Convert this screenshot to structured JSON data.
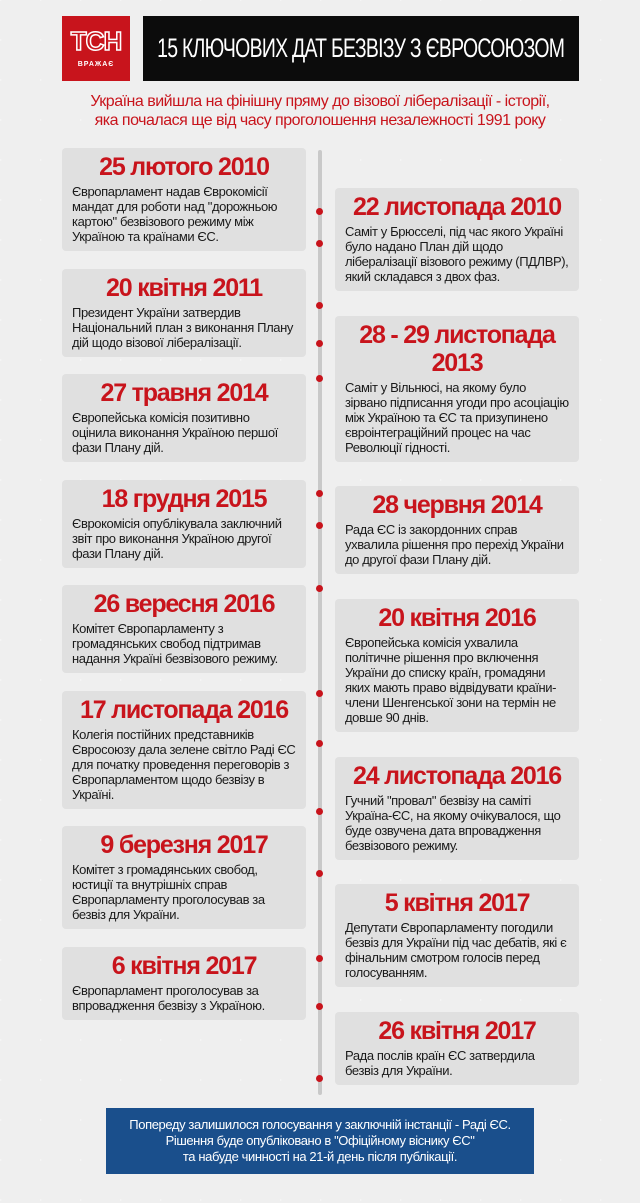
{
  "logo": {
    "text": "ТСН",
    "sub": "ВРАЖАЄ"
  },
  "header": {
    "title": "15 КЛЮЧОВИХ ДАТ БЕЗВІЗУ З ЄВРОСОЮЗОМ",
    "subtitle_1": "Україна вийшла на фінішну пряму до візової лібералізації - історії,",
    "subtitle_2": "яка почалася ще від часу проголошення незалежності 1991 року"
  },
  "colors": {
    "accent": "#c8141c",
    "banner": "#0c0c0c",
    "footer": "#1a4f8c"
  },
  "left": [
    {
      "date": "25 лютого 2010",
      "year": "2010",
      "text": "Європарламент надав Єврокомісії мандат для роботи над \"дорожньою картою\" безвізового режиму між Україною та країнами ЄС."
    },
    {
      "date": "20 квітня 2011",
      "year": "2011",
      "text": "Президент України затвердив Національний план з виконання Плану дій щодо візової лібералізації."
    },
    {
      "date": "27 травня 2014",
      "year": "2014",
      "text": "Європейська комісія позитивно оцінила виконання Україною першої фази Плану дій."
    },
    {
      "date": "18 грудня 2015",
      "year": "2015",
      "text": "Єврокомісія опублікувала заключний звіт про виконання Україною другої фази Плану дій."
    },
    {
      "date": "26 вересня 2016",
      "year": "2016",
      "text": "Комітет Європарламенту з громадянських свобод підтримав надання Україні безвізового режиму."
    },
    {
      "date": "17 листопада 2016",
      "year": "2016",
      "text": "Колегія постійних представників Євросоюзу дала зелене світло Раді ЄС для початку проведення переговорів з Європарламентом щодо безвізу в Україні."
    },
    {
      "date": "9 березня 2017",
      "year": "2017",
      "text": "Комітет з громадянських свобод, юстиції та внутрішніх справ Європарламенту проголосував за безвіз для України."
    },
    {
      "date": "6 квітня 2017",
      "year": "2017",
      "text": "Європарламент проголосував за впровадження безвізу з Україною."
    }
  ],
  "right": [
    {
      "date": "22 листопада 2010",
      "year": "2010",
      "text": "Саміт у Брюсселі, під час якого Україні було надано План дій щодо лібералізації візового режиму (ПДЛВР), який складався з двох фаз."
    },
    {
      "date": "28 - 29 листопада 2013",
      "year": "2013",
      "text": "Саміт у Вільнюсі, на якому було зірвано підписання угоди про асоціацію між Україною та ЄС та призупинено євроінтеграційний процес на час Революції гідності."
    },
    {
      "date": "28 червня 2014",
      "year": "2014",
      "text": "Рада ЄС із закордонних справ ухвалила рішення про перехід України до другої фази Плану дій."
    },
    {
      "date": "20 квітня 2016",
      "year": "2016",
      "text": "Європейська комісія ухвалила політичне рішення про включення України до списку країн, громадяни яких мають право відвідувати країни-члени Шенгенської зони на термін не довше 90 днів."
    },
    {
      "date": "24 листопада 2016",
      "year": "2016",
      "text": "Гучний \"провал\" безвізу на саміті Україна-ЄС, на якому очікувалося, що буде озвучена дата впровадження безвізового режиму."
    },
    {
      "date": "5 квітня 2017",
      "year": "2017",
      "text": "Депутати Європарламенту погодили безвіз для України під час дебатів, які є фінальним смотром голосів перед голосуванням."
    },
    {
      "date": "26 квітня 2017",
      "year": "2017",
      "text": "Рада послів країн ЄС затвердила безвіз для України."
    }
  ],
  "footer": {
    "line_1": "Попереду залишилося голосування у заключній інстанції - Раді ЄС.",
    "line_2": "Рішення буде опубліковано в \"Офіційному віснику ЄС\"",
    "line_3": "та набуде чинності на 21-й день після публікації."
  }
}
